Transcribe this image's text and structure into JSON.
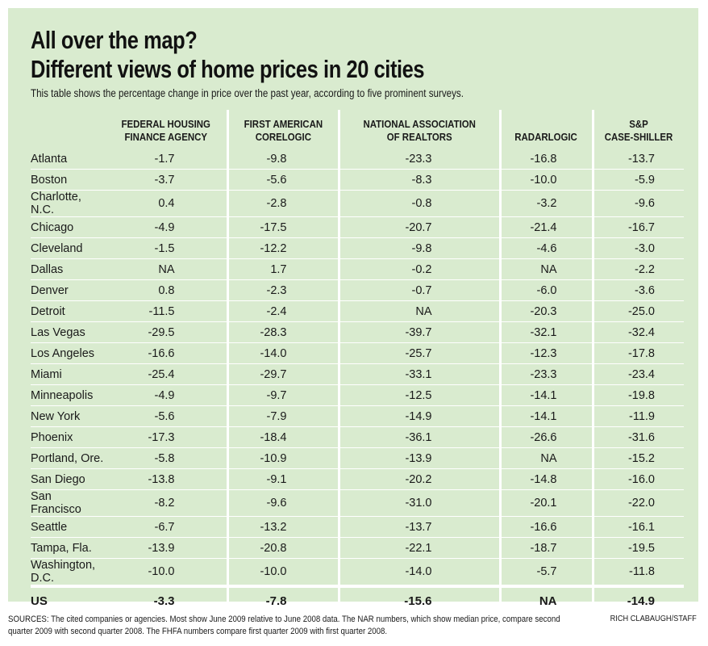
{
  "title_line1": "All over the map?",
  "title_line2": "Different views of home prices in 20 cities",
  "subtitle": "This table shows the percentage change in price over the past year, according to five prominent surveys.",
  "colors": {
    "panel": "#d9ebcf",
    "rules": "#ffffff"
  },
  "chart_data": {
    "type": "table",
    "columns": [
      "",
      "FEDERAL HOUSING FINANCE AGENCY",
      "FIRST AMERICAN CORELOGIC",
      "NATIONAL ASSOCIATION OF REALTORS",
      "RADARLOGIC",
      "S&P CASE-SHILLER"
    ],
    "header_lines": [
      [
        "FEDERAL HOUSING",
        "FINANCE AGENCY"
      ],
      [
        "FIRST AMERICAN",
        "CORELOGIC"
      ],
      [
        "NATIONAL ASSOCIATION",
        "OF REALTORS"
      ],
      [
        "",
        "RADARLOGIC"
      ],
      [
        "S&P",
        "CASE-SHILLER"
      ]
    ],
    "rows": [
      [
        "Atlanta",
        "-1.7",
        "-9.8",
        "-23.3",
        "-16.8",
        "-13.7"
      ],
      [
        "Boston",
        "-3.7",
        "-5.6",
        "-8.3",
        "-10.0",
        "-5.9"
      ],
      [
        "Charlotte, N.C.",
        "0.4",
        "-2.8",
        "-0.8",
        "-3.2",
        "-9.6"
      ],
      [
        "Chicago",
        "-4.9",
        "-17.5",
        "-20.7",
        "-21.4",
        "-16.7"
      ],
      [
        "Cleveland",
        "-1.5",
        "-12.2",
        "-9.8",
        "-4.6",
        "-3.0"
      ],
      [
        "Dallas",
        "NA",
        "1.7",
        "-0.2",
        "NA",
        "-2.2"
      ],
      [
        "Denver",
        "0.8",
        "-2.3",
        "-0.7",
        "-6.0",
        "-3.6"
      ],
      [
        "Detroit",
        "-11.5",
        "-2.4",
        "NA",
        "-20.3",
        "-25.0"
      ],
      [
        "Las Vegas",
        "-29.5",
        "-28.3",
        "-39.7",
        "-32.1",
        "-32.4"
      ],
      [
        "Los Angeles",
        "-16.6",
        "-14.0",
        "-25.7",
        "-12.3",
        "-17.8"
      ],
      [
        "Miami",
        "-25.4",
        "-29.7",
        "-33.1",
        "-23.3",
        "-23.4"
      ],
      [
        "Minneapolis",
        "-4.9",
        "-9.7",
        "-12.5",
        "-14.1",
        "-19.8"
      ],
      [
        "New York",
        "-5.6",
        "-7.9",
        "-14.9",
        "-14.1",
        "-11.9"
      ],
      [
        "Phoenix",
        "-17.3",
        "-18.4",
        "-36.1",
        "-26.6",
        "-31.6"
      ],
      [
        "Portland, Ore.",
        "-5.8",
        "-10.9",
        "-13.9",
        "NA",
        "-15.2"
      ],
      [
        "San Diego",
        "-13.8",
        "-9.1",
        "-20.2",
        "-14.8",
        "-16.0"
      ],
      [
        "San Francisco",
        "-8.2",
        "-9.6",
        "-31.0",
        "-20.1",
        "-22.0"
      ],
      [
        "Seattle",
        "-6.7",
        "-13.2",
        "-13.7",
        "-16.6",
        "-16.1"
      ],
      [
        "Tampa, Fla.",
        "-13.9",
        "-20.8",
        "-22.1",
        "-18.7",
        "-19.5"
      ],
      [
        "Washington, D.C.",
        "-10.0",
        "-10.0",
        "-14.0",
        "-5.7",
        "-11.8"
      ]
    ],
    "total_row": [
      "US",
      "-3.3",
      "-7.8",
      "-15.6",
      "NA",
      "-14.9"
    ]
  },
  "sources": "SOURCES: The cited companies or agencies. Most show June 2009 relative to June 2008 data. The NAR numbers, which show median price, compare second quarter 2009 with second quarter 2008. The FHFA numbers compare first quarter 2009 with first quarter 2008.",
  "credit": "RICH CLABAUGH/STAFF"
}
